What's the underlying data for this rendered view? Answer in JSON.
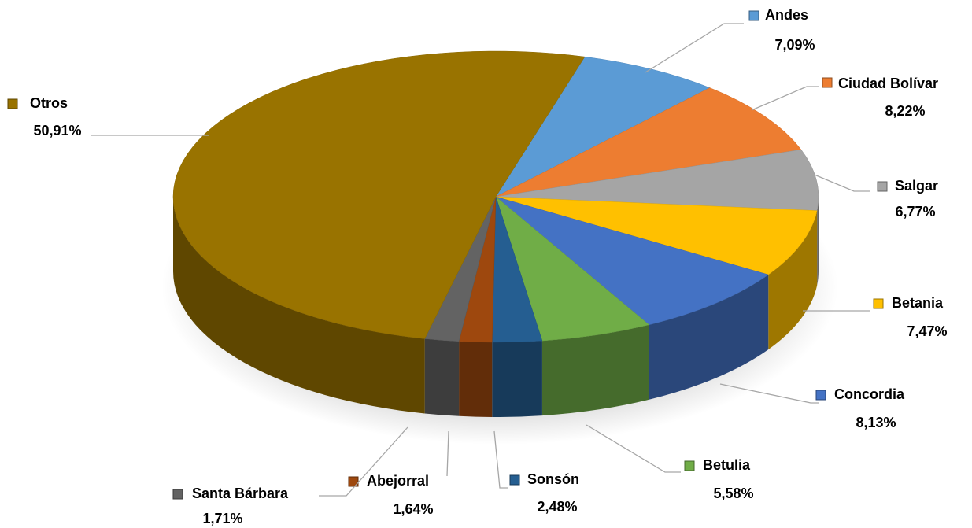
{
  "chart_data": {
    "type": "pie",
    "categories": [
      "Andes",
      "Ciudad Bolívar",
      "Salgar",
      "Betania",
      "Concordia",
      "Betulia",
      "Sonsón",
      "Abejorral",
      "Santa Bárbara",
      "Otros"
    ],
    "values": [
      7.09,
      8.22,
      6.77,
      7.47,
      8.13,
      5.58,
      2.48,
      1.64,
      1.71,
      50.91
    ],
    "value_labels": [
      "7,09%",
      "8,22%",
      "6,77%",
      "7,47%",
      "8,13%",
      "5,58%",
      "2,48%",
      "1,64%",
      "1,71%",
      "50,91%"
    ],
    "colors": [
      "#5b9bd5",
      "#ed7d31",
      "#a5a5a5",
      "#ffc000",
      "#4472c4",
      "#70ad47",
      "#255e91",
      "#9e480e",
      "#636363",
      "#997300"
    ]
  }
}
